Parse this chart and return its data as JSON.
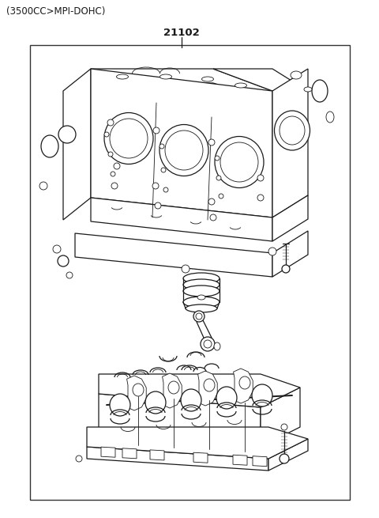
{
  "title_text": "(3500CC>MPI-DOHC)",
  "part_number": "21102",
  "bg_color": "#ffffff",
  "line_color": "#1a1a1a",
  "border_color": "#333333",
  "title_fontsize": 8.5,
  "part_number_fontsize": 9.5,
  "fig_width": 4.8,
  "fig_height": 6.55,
  "dpi": 100
}
